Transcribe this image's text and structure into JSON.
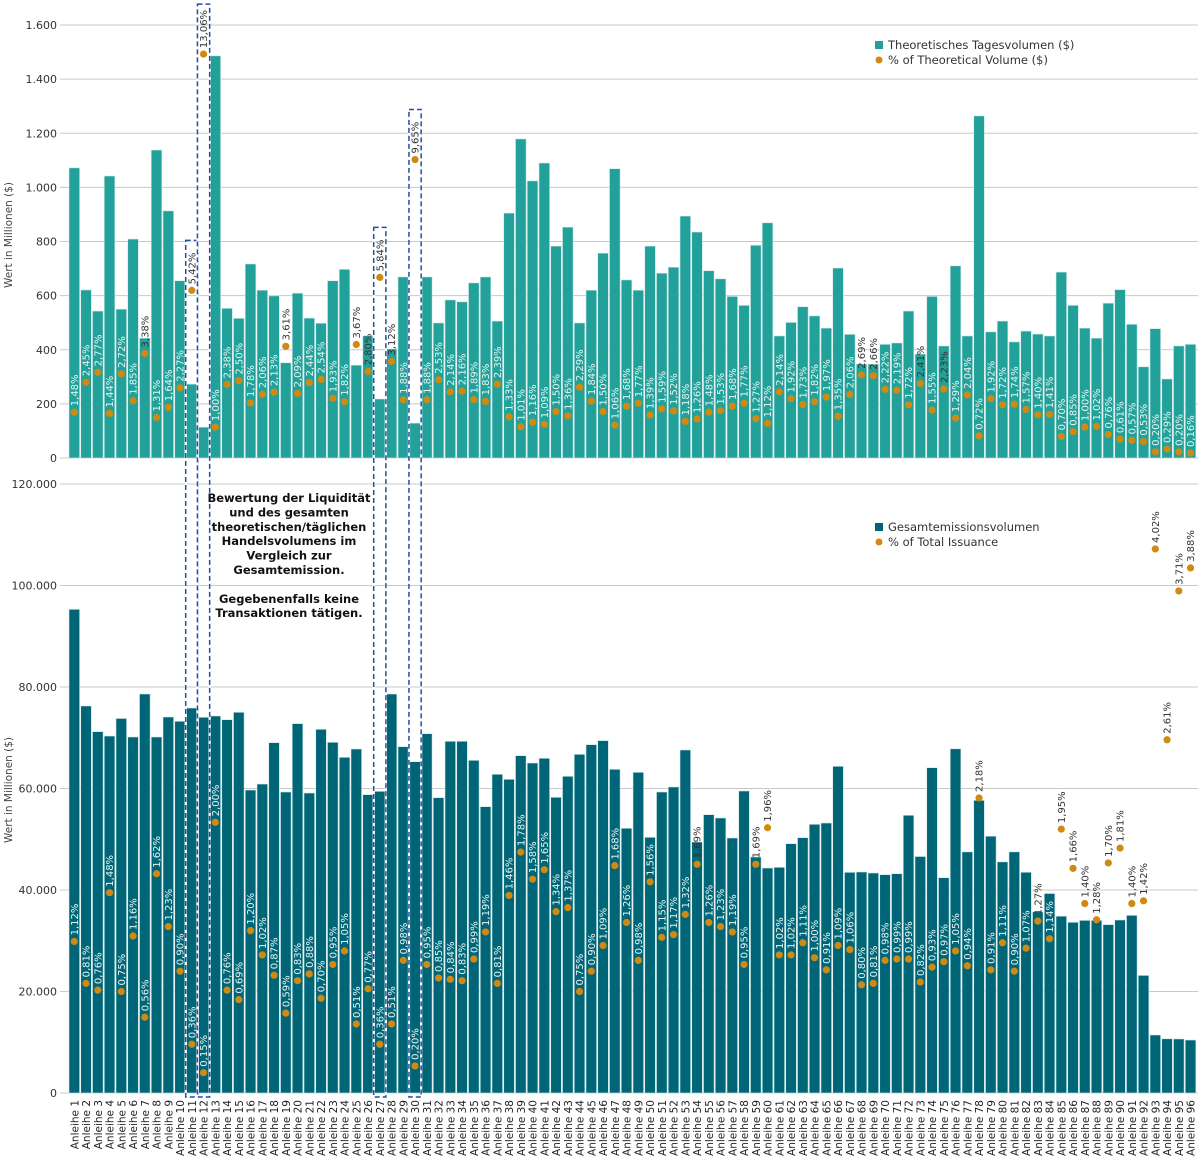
{
  "colors": {
    "top_bar": "#22a19a",
    "bottom_bar": "#006677",
    "dot": "#d08a12",
    "highlight_box": "#1f4fa0",
    "grid": "#c8c8c8"
  },
  "annotation": {
    "lines": [
      "Bewertung der Liquidität",
      "und des gesamten",
      "theoretischen/täglichen",
      "Handelsvolumens im",
      "Vergleich zur",
      "Gesamtemission.",
      "",
      "Gegebenenfalls keine",
      "Transaktionen tätigen."
    ]
  },
  "chart_data": [
    {
      "type": "bar",
      "ylabel": "Wert in Millionen ($)",
      "ylim": [
        0,
        1600
      ],
      "y2lim": [
        0,
        14
      ],
      "grid": true,
      "legend_position": "top-right",
      "yticks": [
        0,
        200,
        400,
        600,
        800,
        1000,
        1200,
        1400,
        1600
      ],
      "ytick_labels": [
        "0",
        "200",
        "400",
        "600",
        "800",
        "1.000",
        "1.200",
        "1.400",
        "1.600"
      ],
      "highlighted": [
        "Anleihe 11",
        "Anleihe 12",
        "Anleihe 27",
        "Anleihe 30"
      ],
      "series": [
        {
          "name": "Theoretisches Tagesvolumen ($)",
          "type": "bar",
          "values": [
            1072,
            621,
            543,
            1042,
            550,
            809,
            443,
            1138,
            913,
            655,
            273,
            114,
            1486,
            553,
            516,
            717,
            620,
            599,
            352,
            609,
            517,
            498,
            655,
            697,
            343,
            451,
            218,
            403,
            669,
            129,
            669,
            499,
            584,
            577,
            647,
            669,
            506,
            905,
            1179,
            1024,
            1090,
            783,
            853,
            499,
            620,
            757,
            1069,
            658,
            620,
            783,
            683,
            705,
            894,
            835,
            692,
            662,
            597,
            564,
            786,
            869,
            451,
            501,
            559,
            525,
            480,
            702,
            457,
            347,
            347,
            420,
            425,
            543,
            384,
            597,
            414,
            710,
            451,
            1264,
            466,
            506,
            429,
            469,
            458,
            451,
            687,
            564,
            480,
            443,
            572,
            622,
            494,
            337,
            478,
            292,
            414,
            420
          ]
        },
        {
          "name": "% of Theoretical Volume ($)",
          "type": "scatter",
          "values": [
            "1,48%",
            "2,45%",
            "2,77%",
            "1,44%",
            "2,72%",
            "1,85%",
            "3,38%",
            "1,31%",
            "1,64%",
            "2,27%",
            "5,42%",
            "13,06%",
            "1,00%",
            "2,38%",
            "2,50%",
            "1,78%",
            "2,06%",
            "2,13%",
            "3,61%",
            "2,09%",
            "2,44%",
            "2,54%",
            "1,93%",
            "1,82%",
            "3,67%",
            "2,80%",
            "5,84%",
            "3,12%",
            "1,88%",
            "9,65%",
            "1,88%",
            "2,53%",
            "2,14%",
            "2,16%",
            "1,89%",
            "1,83%",
            "2,39%",
            "1,33%",
            "1,01%",
            "1,16%",
            "1,09%",
            "1,50%",
            "1,36%",
            "2,29%",
            "1,84%",
            "1,50%",
            "1,06%",
            "1,68%",
            "1,77%",
            "1,39%",
            "1,59%",
            "1,52%",
            "1,18%",
            "1,26%",
            "1,48%",
            "1,53%",
            "1,68%",
            "1,77%",
            "1,27%",
            "1,12%",
            "2,14%",
            "1,92%",
            "1,73%",
            "1,82%",
            "1,97%",
            "1,35%",
            "2,06%",
            "2,69%",
            "2,66%",
            "2,22%",
            "2,19%",
            "1,72%",
            "2,41%",
            "1,55%",
            "2,23%",
            "1,29%",
            "2,04%",
            "0,72%",
            "1,92%",
            "1,72%",
            "1,74%",
            "1,57%",
            "1,40%",
            "1,41%",
            "0,70%",
            "0,85%",
            "1,00%",
            "1,02%",
            "0,76%",
            "0,61%",
            "0,57%",
            "0,53%",
            "0,20%",
            "0,29%",
            "0,20%",
            "0,16%"
          ]
        }
      ]
    },
    {
      "type": "bar",
      "ylabel": "Wert in Millionen ($)",
      "ylim": [
        0,
        120000
      ],
      "y2lim": [
        0,
        4.5
      ],
      "grid": true,
      "legend_position": "top-right",
      "yticks": [
        0,
        20000,
        40000,
        60000,
        80000,
        100000,
        120000
      ],
      "ytick_labels": [
        "0",
        "20.000",
        "40.000",
        "60.000",
        "80.000",
        "100.000",
        "120.000"
      ],
      "categories": [
        "Anleihe 1",
        "Anleihe 2",
        "Anleihe 3",
        "Anleihe 4",
        "Anleihe 5",
        "Anleihe 6",
        "Anleihe 7",
        "Anleihe 8",
        "Anleihe 9",
        "Anleihe 10",
        "Anleihe 11",
        "Anleihe 12",
        "Anleihe 13",
        "Anleihe 14",
        "Anleihe 15",
        "Anleihe 16",
        "Anleihe 17",
        "Anleihe 18",
        "Anleihe 19",
        "Anleihe 20",
        "Anleihe 21",
        "Anleihe 22",
        "Anleihe 23",
        "Anleihe 24",
        "Anleihe 25",
        "Anleihe 26",
        "Anleihe 27",
        "Anleihe 28",
        "Anleihe 29",
        "Anleihe 30",
        "Anleihe 31",
        "Anleihe 32",
        "Anleihe 33",
        "Anleihe 34",
        "Anleihe 35",
        "Anleihe 36",
        "Anleihe 37",
        "Anleihe 38",
        "Anleihe 39",
        "Anleihe 40",
        "Anleihe 41",
        "Anleihe 42",
        "Anleihe 43",
        "Anleihe 44",
        "Anleihe 45",
        "Anleihe 46",
        "Anleihe 47",
        "Anleihe 48",
        "Anleihe 49",
        "Anleihe 50",
        "Anleihe 51",
        "Anleihe 52",
        "Anleihe 53",
        "Anleihe 54",
        "Anleihe 55",
        "Anleihe 56",
        "Anleihe 57",
        "Anleihe 58",
        "Anleihe 59",
        "Anleihe 60",
        "Anleihe 61",
        "Anleihe 62",
        "Anleihe 63",
        "Anleihe 64",
        "Anleihe 65",
        "Anleihe 66",
        "Anleihe 67",
        "Anleihe 68",
        "Anleihe 69",
        "Anleihe 70",
        "Anleihe 71",
        "Anleihe 72",
        "Anleihe 73",
        "Anleihe 74",
        "Anleihe 75",
        "Anleihe 76",
        "Anleihe 77",
        "Anleihe 78",
        "Anleihe 79",
        "Anleihe 80",
        "Anleihe 81",
        "Anleihe 82",
        "Anleihe 83",
        "Anleihe 84",
        "Anleihe 85",
        "Anleihe 86",
        "Anleihe 87",
        "Anleihe 88",
        "Anleihe 89",
        "Anleihe 90",
        "Anleihe 91",
        "Anleihe 92",
        "Anleihe 93",
        "Anleihe 94",
        "Anleihe 95",
        "Anleihe 96"
      ],
      "series": [
        {
          "name": "Gesamtemissionsvolumen",
          "type": "bar",
          "values": [
            95300,
            76260,
            71200,
            70340,
            73800,
            70150,
            78620,
            70150,
            74090,
            73240,
            75860,
            74030,
            74290,
            73560,
            75010,
            59700,
            60880,
            69030,
            59310,
            72780,
            59110,
            71660,
            69100,
            66140,
            67780,
            58790,
            59440,
            78620,
            68240,
            65280,
            70800,
            58190,
            69300,
            69300,
            65550,
            56420,
            62800,
            61810,
            66470,
            65020,
            65950,
            58260,
            62400,
            66730,
            68640,
            69430,
            63780,
            52160,
            63190,
            50380,
            59310,
            60300,
            67590,
            49460,
            54840,
            54190,
            50250,
            59510,
            46500,
            44330,
            44470,
            49130,
            50310,
            52940,
            53200,
            64370,
            43480,
            43550,
            43350,
            43020,
            43210,
            54720,
            46600,
            64100,
            42420,
            67820,
            47510,
            57660,
            50600,
            45540,
            47510,
            43490,
            35690,
            39310,
            34840,
            33640,
            34010,
            34010,
            33180,
            34090,
            35000,
            23170,
            11430,
            10680,
            10650,
            10440
          ]
        },
        {
          "name": "% of Total Issuance",
          "type": "scatter",
          "values": [
            "1,12%",
            "0,81%",
            "0,76%",
            "1,48%",
            "0,75%",
            "1,16%",
            "0,56%",
            "1,62%",
            "1,23%",
            "0,90%",
            "0,36%",
            "0,15%",
            "2,00%",
            "0,76%",
            "0,69%",
            "1,20%",
            "1,02%",
            "0,87%",
            "0,59%",
            "0,83%",
            "0,88%",
            "0,70%",
            "0,95%",
            "1,05%",
            "0,51%",
            "0,77%",
            "0,36%",
            "0,51%",
            "0,98%",
            "0,20%",
            "0,95%",
            "0,85%",
            "0,84%",
            "0,83%",
            "0,99%",
            "1,19%",
            "0,81%",
            "1,46%",
            "1,78%",
            "1,58%",
            "1,65%",
            "1,34%",
            "1,37%",
            "0,75%",
            "0,90%",
            "1,09%",
            "1,68%",
            "1,26%",
            "0,98%",
            "1,56%",
            "1,15%",
            "1,17%",
            "1,32%",
            "1,69%",
            "1,26%",
            "1,23%",
            "1,19%",
            "0,95%",
            "1,69%",
            "1,96%",
            "1,02%",
            "1,02%",
            "1,11%",
            "1,00%",
            "0,91%",
            "1,09%",
            "1,06%",
            "0,80%",
            "0,81%",
            "0,98%",
            "0,99%",
            "0,99%",
            "0,82%",
            "0,93%",
            "0,97%",
            "1,05%",
            "0,94%",
            "2,18%",
            "0,91%",
            "1,11%",
            "0,90%",
            "1,07%",
            "1,27%",
            "1,14%",
            "1,95%",
            "1,66%",
            "1,40%",
            "1,28%",
            "1,70%",
            "1,81%",
            "1,40%",
            "1,42%",
            "4,02%",
            "2,61%",
            "3,71%",
            "3,88%"
          ]
        }
      ]
    }
  ]
}
